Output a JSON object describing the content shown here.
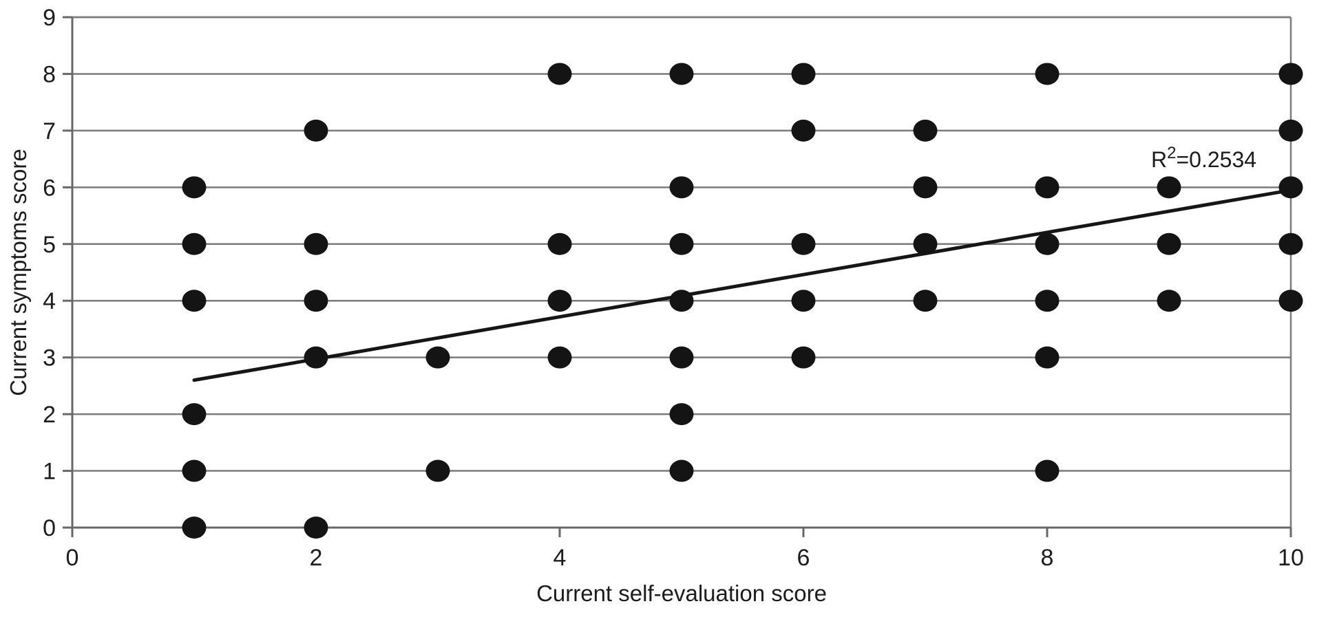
{
  "chart_data": {
    "type": "scatter",
    "title": "",
    "xlabel": "Current self-evaluation score",
    "ylabel": "Current symptoms score",
    "xlim": [
      0,
      10
    ],
    "ylim": [
      0,
      9
    ],
    "x_ticks": [
      0,
      2,
      4,
      6,
      8,
      10
    ],
    "y_ticks": [
      0,
      1,
      2,
      3,
      4,
      5,
      6,
      7,
      8,
      9
    ],
    "grid": "horizontal-only",
    "legend": "none",
    "points": [
      [
        1,
        0
      ],
      [
        1,
        1
      ],
      [
        1,
        2
      ],
      [
        1,
        4
      ],
      [
        1,
        5
      ],
      [
        1,
        6
      ],
      [
        2,
        0
      ],
      [
        2,
        3
      ],
      [
        2,
        4
      ],
      [
        2,
        5
      ],
      [
        2,
        7
      ],
      [
        3,
        1
      ],
      [
        3,
        3
      ],
      [
        4,
        3
      ],
      [
        4,
        4
      ],
      [
        4,
        5
      ],
      [
        4,
        8
      ],
      [
        5,
        1
      ],
      [
        5,
        2
      ],
      [
        5,
        3
      ],
      [
        5,
        4
      ],
      [
        5,
        5
      ],
      [
        5,
        6
      ],
      [
        5,
        8
      ],
      [
        6,
        3
      ],
      [
        6,
        4
      ],
      [
        6,
        5
      ],
      [
        6,
        7
      ],
      [
        6,
        8
      ],
      [
        7,
        4
      ],
      [
        7,
        5
      ],
      [
        7,
        6
      ],
      [
        7,
        7
      ],
      [
        8,
        1
      ],
      [
        8,
        3
      ],
      [
        8,
        4
      ],
      [
        8,
        5
      ],
      [
        8,
        6
      ],
      [
        8,
        8
      ],
      [
        9,
        4
      ],
      [
        9,
        5
      ],
      [
        9,
        6
      ],
      [
        10,
        4
      ],
      [
        10,
        5
      ],
      [
        10,
        6
      ],
      [
        10,
        7
      ],
      [
        10,
        8
      ]
    ],
    "trendline": {
      "x_start": 1,
      "y_start": 2.6,
      "x_end": 10,
      "y_end": 5.95
    },
    "annotation": {
      "base": "R",
      "sup": "2",
      "rest": "=0.2534",
      "r_squared": 0.2534
    },
    "colors": {
      "point": "#141414",
      "trend": "#161616",
      "grid": "#7a7a7a",
      "axis": "#686868",
      "text": "#1c1c1c",
      "background": "#ffffff"
    }
  }
}
